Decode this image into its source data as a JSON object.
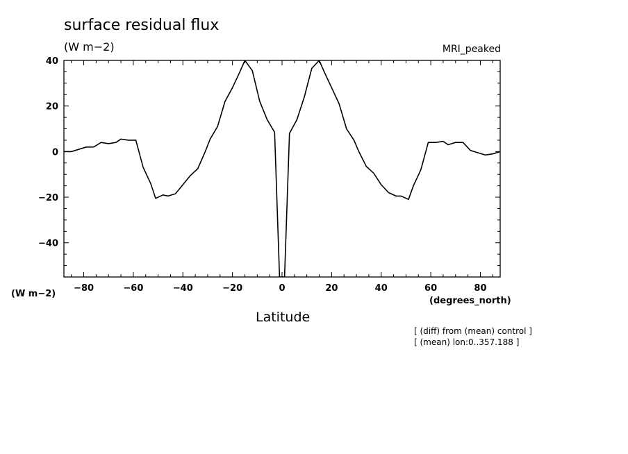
{
  "chart_data": {
    "type": "line",
    "title": "surface residual flux",
    "units": "(W m−2)",
    "model_label": "MRI_peaked",
    "xlabel": "Latitude",
    "x_unit": "(degrees_north)",
    "y_unit": "(W m−2)",
    "notes": [
      "[ (diff) from (mean) control ]",
      "[ (mean) lon:0..357.188 ]"
    ],
    "xlim": [
      -88,
      88
    ],
    "ylim": [
      -55,
      40
    ],
    "x_ticks": [
      -80,
      -60,
      -40,
      -20,
      0,
      20,
      40,
      60,
      80
    ],
    "x_tick_labels": [
      "−80",
      "−60",
      "−40",
      "−20",
      "0",
      "20",
      "40",
      "60",
      "80"
    ],
    "y_ticks": [
      -40,
      -20,
      0,
      20,
      40
    ],
    "y_tick_labels": [
      "−40",
      "−20",
      "0",
      "20",
      "40"
    ],
    "grid": false,
    "series": [
      {
        "color": "#000000",
        "x": [
          -88,
          -85,
          -79,
          -76,
          -73,
          -70,
          -67,
          -65,
          -62,
          -59,
          -56,
          -53,
          -51,
          -48,
          -46,
          -43,
          -40,
          -37,
          -34,
          -31,
          -29,
          -26,
          -23,
          -20,
          -17,
          -15,
          -12,
          -9,
          -6,
          -3,
          -1,
          1,
          3,
          6,
          9,
          12,
          15,
          17,
          20,
          23,
          26,
          29,
          31,
          34,
          37,
          40,
          43,
          46,
          48,
          51,
          53,
          56,
          59,
          62,
          65,
          67,
          70,
          73,
          76,
          79,
          82,
          85,
          88
        ],
        "y": [
          0,
          0,
          2,
          2,
          4,
          3.5,
          4,
          5.5,
          5,
          5,
          -7,
          -14,
          -20.5,
          -19,
          -19.5,
          -18.5,
          -14.5,
          -10.5,
          -7.5,
          0,
          5.5,
          11,
          22,
          28,
          35,
          40,
          35.5,
          22,
          14,
          8.5,
          -55,
          -55,
          8,
          14,
          24,
          36.5,
          40,
          35,
          28,
          21,
          10,
          5,
          0,
          -6.5,
          -9.5,
          -14.5,
          -18,
          -19.5,
          -19.5,
          -21,
          -15,
          -8,
          4,
          4,
          4.5,
          3,
          4,
          4,
          0.5,
          -0.5,
          -1.5,
          -1,
          0
        ]
      }
    ]
  }
}
